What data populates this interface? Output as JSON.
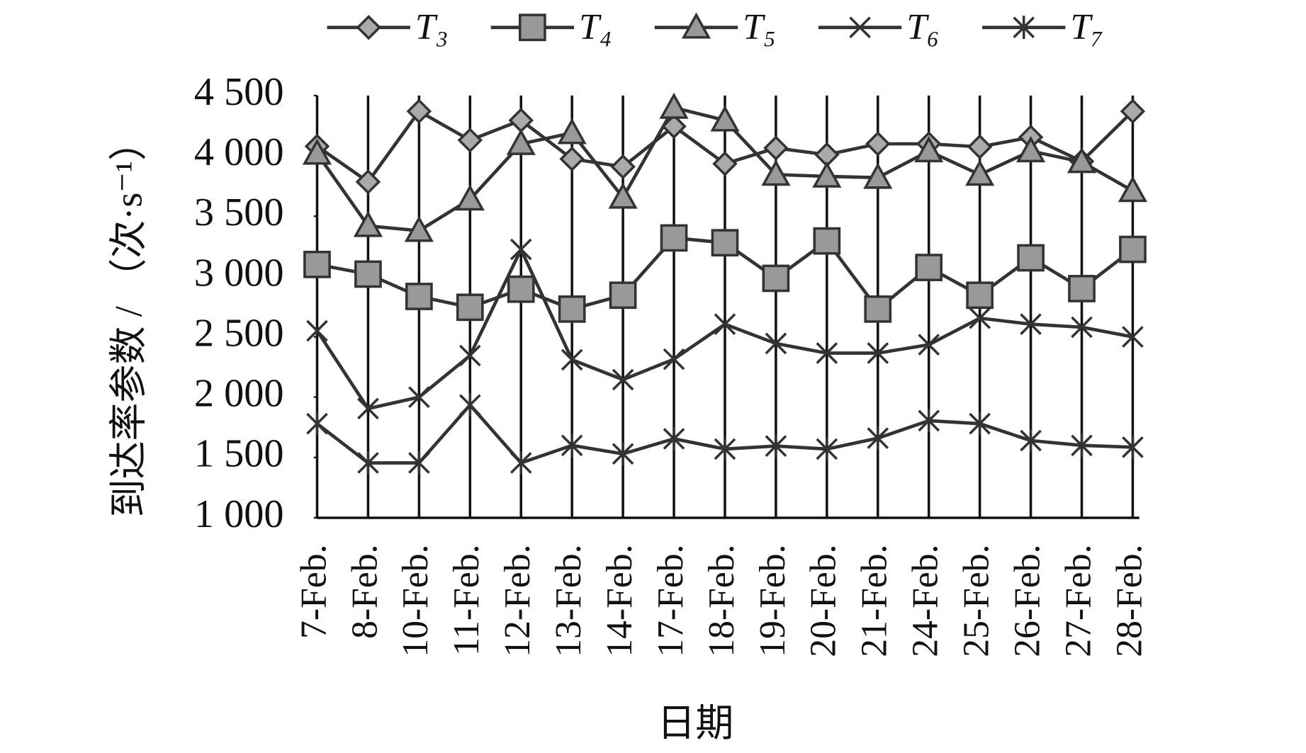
{
  "chart_data": {
    "type": "line",
    "y_label": "到达率参数 / （次·s⁻¹）",
    "x_label": "日期",
    "categories": [
      "7-Feb.",
      "8-Feb.",
      "10-Feb.",
      "11-Feb.",
      "12-Feb.",
      "13-Feb.",
      "14-Feb.",
      "17-Feb.",
      "18-Feb.",
      "19-Feb.",
      "20-Feb.",
      "21-Feb.",
      "24-Feb.",
      "25-Feb.",
      "26-Feb.",
      "27-Feb.",
      "28-Feb."
    ],
    "ylim": [
      1000,
      4500
    ],
    "yticks": [
      {
        "value": 1000,
        "label": "1 000"
      },
      {
        "value": 1500,
        "label": "1 500"
      },
      {
        "value": 2000,
        "label": "2 000"
      },
      {
        "value": 2500,
        "label": "2 500"
      },
      {
        "value": 3000,
        "label": "3 000"
      },
      {
        "value": 3500,
        "label": "3 500"
      },
      {
        "value": 4000,
        "label": "4 000"
      },
      {
        "value": 4500,
        "label": "4 500"
      }
    ],
    "series": [
      {
        "name": "T₃",
        "color": "#333333",
        "marker": "diamond",
        "values": [
          4080,
          3785,
          4370,
          4130,
          4295,
          3975,
          3910,
          4245,
          3935,
          4065,
          4010,
          4100,
          4100,
          4075,
          4155,
          3955,
          4370
        ]
      },
      {
        "name": "T₄",
        "color": "#333333",
        "marker": "square",
        "values": [
          3100,
          3020,
          2835,
          2745,
          2895,
          2730,
          2845,
          3320,
          3280,
          2985,
          3295,
          2730,
          3075,
          2845,
          3155,
          2900,
          3225
        ]
      },
      {
        "name": "T₅",
        "color": "#333333",
        "marker": "triangle",
        "values": [
          4020,
          3420,
          3380,
          3640,
          4100,
          4190,
          3655,
          4400,
          4295,
          3845,
          3830,
          3820,
          4040,
          3845,
          4040,
          3950,
          3710
        ]
      },
      {
        "name": "T₆",
        "color": "#333333",
        "marker": "x",
        "values": [
          2550,
          1905,
          2000,
          2345,
          3225,
          2310,
          2145,
          2315,
          2605,
          2445,
          2365,
          2365,
          2435,
          2655,
          2605,
          2580,
          2500
        ]
      },
      {
        "name": "T₇",
        "color": "#333333",
        "marker": "star",
        "values": [
          1780,
          1455,
          1455,
          1935,
          1455,
          1600,
          1530,
          1655,
          1570,
          1595,
          1570,
          1660,
          1805,
          1780,
          1640,
          1600,
          1585
        ]
      }
    ]
  }
}
